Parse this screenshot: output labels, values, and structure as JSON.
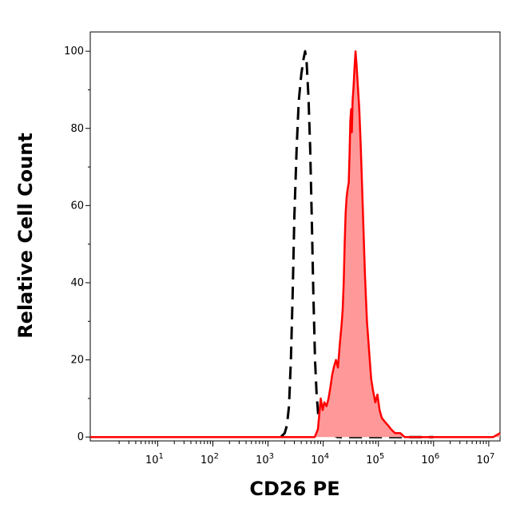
{
  "chart_data": {
    "type": "area",
    "title": "",
    "xlabel": "CD26 PE",
    "ylabel": "Relative Cell Count",
    "x_scale": "log",
    "xlim": [
      0.6,
      16000000
    ],
    "ylim": [
      -1,
      105
    ],
    "grid": false,
    "legend": "none",
    "x_ticks": [
      {
        "base": "10",
        "exp": "1",
        "value": 10
      },
      {
        "base": "10",
        "exp": "2",
        "value": 100
      },
      {
        "base": "10",
        "exp": "3",
        "value": 1000
      },
      {
        "base": "10",
        "exp": "4",
        "value": 10000
      },
      {
        "base": "10",
        "exp": "5",
        "value": 100000
      },
      {
        "base": "10",
        "exp": "6",
        "value": 1000000
      },
      {
        "base": "10",
        "exp": "7",
        "value": 10000000
      }
    ],
    "y_ticks": [
      {
        "label": "0",
        "value": 0
      },
      {
        "label": "20",
        "value": 20
      },
      {
        "label": "40",
        "value": 40
      },
      {
        "label": "60",
        "value": 60
      },
      {
        "label": "80",
        "value": 80
      },
      {
        "label": "100",
        "value": 100
      }
    ],
    "series": [
      {
        "style": "dashed",
        "color": "#000000",
        "fill": "none",
        "points": [
          [
            1700,
            0
          ],
          [
            2000,
            1
          ],
          [
            2200,
            3
          ],
          [
            2400,
            8
          ],
          [
            2600,
            20
          ],
          [
            2800,
            38
          ],
          [
            3000,
            57
          ],
          [
            3300,
            75
          ],
          [
            3600,
            87
          ],
          [
            4000,
            94
          ],
          [
            4400,
            98
          ],
          [
            4700,
            100
          ],
          [
            5000,
            97
          ],
          [
            5400,
            88
          ],
          [
            5800,
            75
          ],
          [
            6200,
            57
          ],
          [
            6600,
            38
          ],
          [
            7100,
            20
          ],
          [
            7600,
            11
          ],
          [
            8200,
            5
          ],
          [
            8800,
            2
          ],
          [
            10000,
            1
          ],
          [
            13000,
            1
          ],
          [
            18000,
            0
          ],
          [
            30000,
            0
          ],
          [
            50000,
            0
          ],
          [
            100000,
            0
          ],
          [
            300000,
            0
          ],
          [
            1000000,
            0
          ]
        ]
      },
      {
        "style": "solid",
        "color": "#ff0000",
        "fill": "#ff9999",
        "points": [
          [
            0.6,
            0
          ],
          [
            10,
            0
          ],
          [
            100,
            0
          ],
          [
            1000,
            0
          ],
          [
            5000,
            0
          ],
          [
            7000,
            0
          ],
          [
            8000,
            2
          ],
          [
            8500,
            6
          ],
          [
            9000,
            10
          ],
          [
            9800,
            7
          ],
          [
            10500,
            9
          ],
          [
            11500,
            8
          ],
          [
            12500,
            10
          ],
          [
            13500,
            13
          ],
          [
            14500,
            16
          ],
          [
            15500,
            18
          ],
          [
            17000,
            20
          ],
          [
            18500,
            18
          ],
          [
            20000,
            24
          ],
          [
            21500,
            29
          ],
          [
            22500,
            33
          ],
          [
            23500,
            40
          ],
          [
            24500,
            50
          ],
          [
            25500,
            58
          ],
          [
            26500,
            62
          ],
          [
            27500,
            64
          ],
          [
            29000,
            66
          ],
          [
            30000,
            73
          ],
          [
            31000,
            82
          ],
          [
            32000,
            85
          ],
          [
            33000,
            79
          ],
          [
            34000,
            87
          ],
          [
            35500,
            91
          ],
          [
            37000,
            96
          ],
          [
            38500,
            100
          ],
          [
            40000,
            97
          ],
          [
            42000,
            92
          ],
          [
            45000,
            85
          ],
          [
            48000,
            75
          ],
          [
            52000,
            60
          ],
          [
            57000,
            42
          ],
          [
            62000,
            30
          ],
          [
            68000,
            22
          ],
          [
            74000,
            15
          ],
          [
            80000,
            12
          ],
          [
            88000,
            9
          ],
          [
            96000,
            11
          ],
          [
            105000,
            7
          ],
          [
            115000,
            5
          ],
          [
            130000,
            4
          ],
          [
            150000,
            3
          ],
          [
            170000,
            2
          ],
          [
            200000,
            1
          ],
          [
            250000,
            1
          ],
          [
            300000,
            0
          ],
          [
            500000,
            0
          ],
          [
            1000000,
            0
          ],
          [
            5000000,
            0
          ],
          [
            12000000,
            0
          ],
          [
            16000000,
            1
          ]
        ]
      }
    ]
  }
}
